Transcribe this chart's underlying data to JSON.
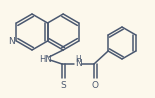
{
  "bg_color": "#fcf8ec",
  "line_color": "#4a5870",
  "text_color": "#4a5870",
  "bond_lw": 1.1,
  "figsize": [
    1.55,
    0.98
  ],
  "dpi": 100,
  "xlim": [
    0,
    155
  ],
  "ylim": [
    0,
    98
  ]
}
